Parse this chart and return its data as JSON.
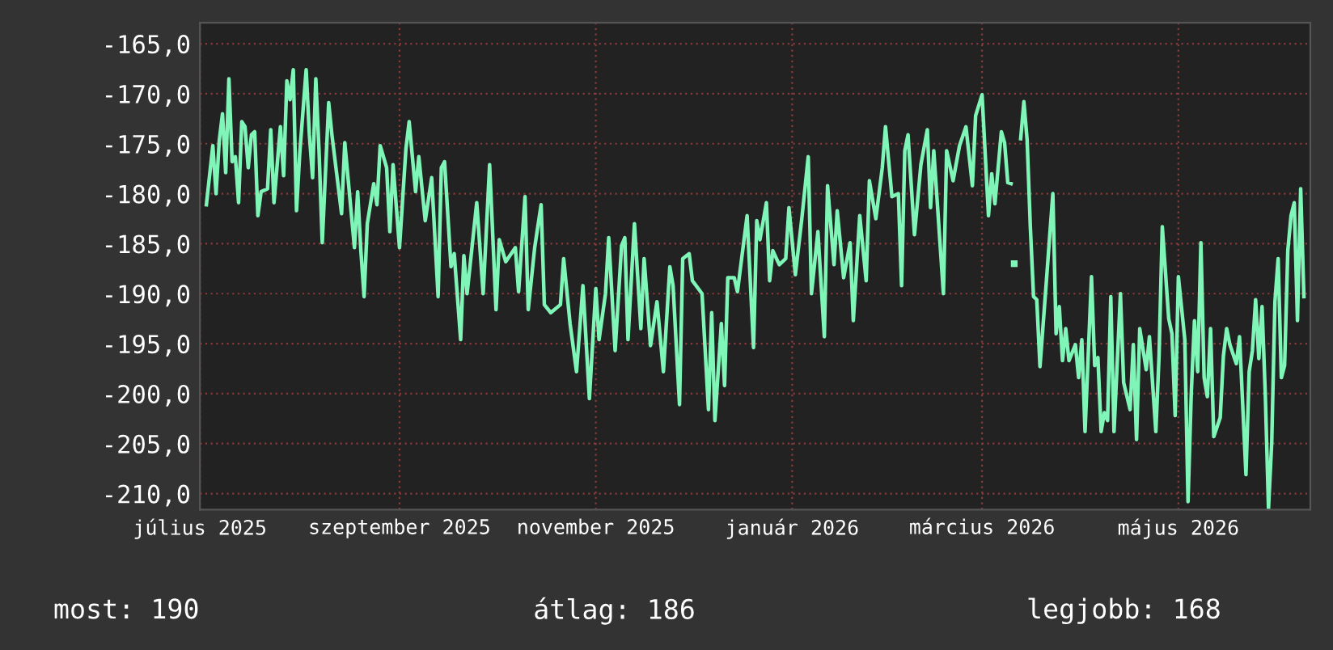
{
  "chart_data": {
    "type": "line",
    "x": [
      "2025-07-03",
      "2025-07-05",
      "2025-07-06",
      "2025-07-07",
      "2025-07-08",
      "2025-07-09",
      "2025-07-10",
      "2025-07-11",
      "2025-07-12",
      "2025-07-13",
      "2025-07-14",
      "2025-07-15",
      "2025-07-16",
      "2025-07-17",
      "2025-07-18",
      "2025-07-19",
      "2025-07-20",
      "2025-07-22",
      "2025-07-23",
      "2025-07-24",
      "2025-07-26",
      "2025-07-27",
      "2025-07-28",
      "2025-07-29",
      "2025-07-30",
      "2025-07-31",
      "2025-08-01",
      "2025-08-03",
      "2025-08-04",
      "2025-08-05",
      "2025-08-06",
      "2025-08-07",
      "2025-08-08",
      "2025-08-10",
      "2025-08-11",
      "2025-08-14",
      "2025-08-15",
      "2025-08-18",
      "2025-08-19",
      "2025-08-20",
      "2025-08-21",
      "2025-08-22",
      "2025-08-24",
      "2025-08-25",
      "2025-08-26",
      "2025-08-28",
      "2025-08-29",
      "2025-08-30",
      "2025-09-01",
      "2025-09-03",
      "2025-09-04",
      "2025-09-06",
      "2025-09-07",
      "2025-09-09",
      "2025-09-11",
      "2025-09-13",
      "2025-09-14",
      "2025-09-15",
      "2025-09-17",
      "2025-09-18",
      "2025-09-20",
      "2025-09-21",
      "2025-09-22",
      "2025-09-25",
      "2025-09-27",
      "2025-09-29",
      "2025-10-01",
      "2025-10-02",
      "2025-10-04",
      "2025-10-07",
      "2025-10-08",
      "2025-10-10",
      "2025-10-11",
      "2025-10-13",
      "2025-10-15",
      "2025-10-16",
      "2025-10-18",
      "2025-10-21",
      "2025-10-22",
      "2025-10-24",
      "2025-10-26",
      "2025-10-28",
      "2025-10-30",
      "2025-11-01",
      "2025-11-02",
      "2025-11-04",
      "2025-11-05",
      "2025-11-07",
      "2025-11-09",
      "2025-11-10",
      "2025-11-11",
      "2025-11-13",
      "2025-11-15",
      "2025-11-16",
      "2025-11-18",
      "2025-11-20",
      "2025-11-22",
      "2025-11-24",
      "2025-11-25",
      "2025-11-27",
      "2025-11-28",
      "2025-11-30",
      "2025-12-01",
      "2025-12-04",
      "2025-12-06",
      "2025-12-07",
      "2025-12-08",
      "2025-12-10",
      "2025-12-11",
      "2025-12-12",
      "2025-12-14",
      "2025-12-15",
      "2025-12-18",
      "2025-12-20",
      "2025-12-21",
      "2025-12-22",
      "2025-12-24",
      "2025-12-25",
      "2025-12-26",
      "2025-12-28",
      "2025-12-30",
      "2025-12-31",
      "2026-01-02",
      "2026-01-04",
      "2026-01-06",
      "2026-01-07",
      "2026-01-09",
      "2026-01-11",
      "2026-01-12",
      "2026-01-14",
      "2026-01-15",
      "2026-01-17",
      "2026-01-19",
      "2026-01-20",
      "2026-01-22",
      "2026-01-24",
      "2026-01-25",
      "2026-01-27",
      "2026-01-29",
      "2026-01-30",
      "2026-02-01",
      "2026-02-03",
      "2026-02-04",
      "2026-02-05",
      "2026-02-06",
      "2026-02-08",
      "2026-02-10",
      "2026-02-12",
      "2026-02-13",
      "2026-02-14",
      "2026-02-17",
      "2026-02-18",
      "2026-02-20",
      "2026-02-22",
      "2026-02-24",
      "2026-02-26",
      "2026-02-27",
      "2026-03-01",
      "2026-03-03",
      "2026-03-04",
      "2026-03-05",
      "2026-03-07",
      "2026-03-08",
      "2026-03-09",
      "2026-03-10",
      "2026-03-10T12:00",
      "2026-03-13",
      "2026-03-14",
      "2026-03-15",
      "2026-03-16",
      "2026-03-17",
      "2026-03-18",
      "2026-03-19",
      "2026-03-21",
      "2026-03-22",
      "2026-03-23",
      "2026-03-24",
      "2026-03-25",
      "2026-03-26",
      "2026-03-27",
      "2026-03-28",
      "2026-03-30",
      "2026-03-31",
      "2026-04-01",
      "2026-04-02",
      "2026-04-04",
      "2026-04-05",
      "2026-04-06",
      "2026-04-07",
      "2026-04-08",
      "2026-04-09",
      "2026-04-10",
      "2026-04-11",
      "2026-04-13",
      "2026-04-14",
      "2026-04-16",
      "2026-04-17",
      "2026-04-18",
      "2026-04-19",
      "2026-04-21",
      "2026-04-22",
      "2026-04-24",
      "2026-04-25",
      "2026-04-26",
      "2026-04-28",
      "2026-04-29",
      "2026-04-30",
      "2026-05-01",
      "2026-05-03",
      "2026-05-04",
      "2026-05-05",
      "2026-05-06",
      "2026-05-07",
      "2026-05-08",
      "2026-05-09",
      "2026-05-10",
      "2026-05-11",
      "2026-05-12",
      "2026-05-14",
      "2026-05-15",
      "2026-05-16",
      "2026-05-17",
      "2026-05-19",
      "2026-05-20",
      "2026-05-22",
      "2026-05-23",
      "2026-05-24",
      "2026-05-25",
      "2026-05-26",
      "2026-05-27",
      "2026-05-28",
      "2026-05-29",
      "2026-05-30",
      "2026-05-31",
      "2026-06-01",
      "2026-06-02",
      "2026-06-03",
      "2026-06-04",
      "2026-06-05",
      "2026-06-06",
      "2026-06-07",
      "2026-06-08",
      "2026-06-09"
    ],
    "series": [
      {
        "color": "#80f5b8",
        "values": [
          -181.1,
          -175.2,
          -180.0,
          -174.7,
          -172.0,
          -177.9,
          -168.5,
          -176.8,
          -176.3,
          -180.9,
          -172.8,
          -173.3,
          -177.4,
          -174.1,
          -173.8,
          -182.2,
          -179.8,
          -179.5,
          -173.6,
          -180.9,
          -173.3,
          -178.2,
          -168.7,
          -170.6,
          -167.6,
          -181.7,
          -176.0,
          -167.6,
          -174.1,
          -178.4,
          -168.5,
          -175.7,
          -184.9,
          -170.9,
          -174.1,
          -182.0,
          -174.9,
          -185.4,
          -179.8,
          -185.7,
          -190.3,
          -183.0,
          -179.0,
          -181.1,
          -175.2,
          -177.4,
          -183.8,
          -177.1,
          -185.4,
          -175.5,
          -172.8,
          -179.8,
          -176.3,
          -182.7,
          -178.4,
          -190.3,
          -177.4,
          -176.8,
          -187.3,
          -186.0,
          -194.6,
          -186.2,
          -190.0,
          -180.9,
          -190.0,
          -177.1,
          -191.6,
          -184.6,
          -186.8,
          -185.4,
          -189.8,
          -180.3,
          -191.6,
          -185.4,
          -181.1,
          -191.1,
          -191.9,
          -191.1,
          -186.5,
          -193.0,
          -197.8,
          -189.2,
          -200.5,
          -189.5,
          -194.6,
          -190.0,
          -184.4,
          -195.7,
          -185.2,
          -184.4,
          -194.6,
          -183.0,
          -193.5,
          -186.5,
          -195.2,
          -190.8,
          -197.8,
          -187.3,
          -189.2,
          -201.1,
          -186.5,
          -186.0,
          -188.7,
          -190.0,
          -201.6,
          -191.9,
          -202.7,
          -193.0,
          -199.2,
          -188.4,
          -188.4,
          -189.8,
          -182.2,
          -195.4,
          -182.7,
          -184.6,
          -180.9,
          -188.7,
          -185.7,
          -187.1,
          -186.5,
          -181.4,
          -188.1,
          -182.5,
          -176.3,
          -190.0,
          -183.8,
          -194.3,
          -179.2,
          -187.1,
          -181.7,
          -188.4,
          -184.9,
          -192.7,
          -182.2,
          -188.7,
          -178.7,
          -182.5,
          -177.4,
          -173.3,
          -180.3,
          -180.0,
          -189.2,
          -175.7,
          -174.1,
          -184.1,
          -177.1,
          -173.6,
          -181.4,
          -175.7,
          -190.0,
          -175.7,
          -178.7,
          -175.2,
          -173.3,
          -179.2,
          -172.2,
          -170.1,
          -182.2,
          -178.0,
          -181.0,
          -173.8,
          -174.9,
          -178.9,
          -179.0,
          null,
          -174.5,
          -170.8,
          -174.6,
          -183.3,
          -190.3,
          -190.6,
          -197.3,
          -188.7,
          -184.3,
          -180.0,
          -194.0,
          -191.3,
          -196.7,
          -193.5,
          -196.7,
          -195.1,
          -198.4,
          -194.6,
          -203.8,
          -188.3,
          -197.2,
          -196.4,
          -203.8,
          -201.9,
          -202.7,
          -190.3,
          -203.8,
          -190.0,
          -198.9,
          -201.6,
          -195.1,
          -204.6,
          -193.5,
          -197.6,
          -194.3,
          -203.8,
          -196.2,
          -183.3,
          -192.5,
          -194.0,
          -202.2,
          -188.3,
          -194.6,
          -210.8,
          -200.0,
          -192.7,
          -197.8,
          -184.9,
          -198.4,
          -200.3,
          -193.5,
          -204.3,
          -202.4,
          -196.2,
          -193.5,
          -195.1,
          -197.0,
          -194.3,
          -208.1,
          -197.8,
          -195.7,
          -190.6,
          -196.5,
          -191.3,
          -200.0,
          -211.5,
          -204.9,
          -190.8,
          -186.5,
          -198.4,
          -197.2,
          -185.7,
          -182.2,
          -180.9,
          -192.7,
          -179.5,
          -190.3
        ]
      },
      {
        "type": "scatter",
        "marker": "square",
        "color": "#80f5b8",
        "x": [
          "2026-03-11"
        ],
        "values": [
          -187.0
        ]
      }
    ],
    "xlim": [
      "2025-07-01",
      "2026-06-11"
    ],
    "xticks": [
      {
        "value": "2025-07-01",
        "label": "július 2025"
      },
      {
        "value": "2025-09-01",
        "label": "szeptember 2025"
      },
      {
        "value": "2025-11-01",
        "label": "november 2025"
      },
      {
        "value": "2026-01-01",
        "label": "január 2026"
      },
      {
        "value": "2026-03-01",
        "label": "március 2026"
      },
      {
        "value": "2026-05-01",
        "label": "május 2026"
      }
    ],
    "ylim": [
      -211.6,
      -162.9
    ],
    "yticks": [
      {
        "value": -165,
        "label": "-165,0"
      },
      {
        "value": -170,
        "label": "-170,0"
      },
      {
        "value": -175,
        "label": "-175,0"
      },
      {
        "value": -180,
        "label": "-180,0"
      },
      {
        "value": -185,
        "label": "-185,0"
      },
      {
        "value": -190,
        "label": "-190,0"
      },
      {
        "value": -195,
        "label": "-195,0"
      },
      {
        "value": -200,
        "label": "-200,0"
      },
      {
        "value": -205,
        "label": "-205,0"
      },
      {
        "value": -210,
        "label": "-210,0"
      }
    ],
    "grid": true,
    "annotations": [
      "most: 190",
      "átlag: 186",
      "legjobb: 168"
    ]
  }
}
